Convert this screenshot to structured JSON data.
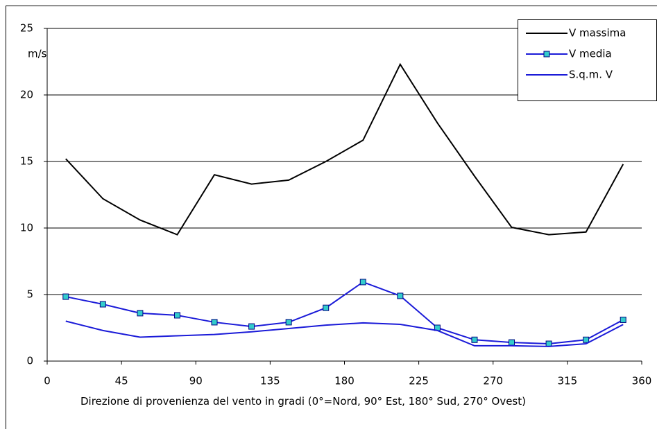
{
  "chart_data": {
    "type": "line",
    "x_label": "Direzione di provenienza del vento in gradi (0°=Nord, 90° Est, 180° Sud, 270° Ovest)",
    "y_label": "m/s",
    "x": [
      11.25,
      33.75,
      56.25,
      78.75,
      101.25,
      123.75,
      146.25,
      168.75,
      191.25,
      213.75,
      236.25,
      258.75,
      281.25,
      303.75,
      326.25,
      348.75
    ],
    "series": [
      {
        "name": "V massima",
        "color": "#000000",
        "marker": "none",
        "values": [
          15.2,
          12.2,
          10.6,
          9.5,
          14.0,
          13.3,
          13.6,
          15.0,
          16.6,
          22.3,
          17.9,
          13.9,
          10.05,
          9.5,
          9.7,
          14.8
        ]
      },
      {
        "name": "V media",
        "color": "#1a1ad8",
        "marker": "square",
        "marker_color": "#33cccc",
        "values": [
          4.84,
          4.27,
          3.6,
          3.44,
          2.92,
          2.6,
          2.92,
          4.0,
          5.94,
          4.9,
          2.5,
          1.6,
          1.4,
          1.3,
          1.6,
          3.1
        ]
      },
      {
        "name": "S.q.m. V",
        "color": "#1a1ad8",
        "marker": "none",
        "values": [
          3.0,
          2.3,
          1.8,
          1.9,
          2.0,
          2.2,
          2.45,
          2.7,
          2.87,
          2.76,
          2.3,
          1.15,
          1.15,
          1.1,
          1.3,
          2.75
        ]
      }
    ],
    "xlim": [
      0,
      360
    ],
    "xticks": [
      0,
      45,
      90,
      135,
      180,
      225,
      270,
      315,
      360
    ],
    "ylim": [
      0,
      25
    ],
    "yticks": [
      0,
      5,
      10,
      15,
      20,
      25
    ],
    "grid": true,
    "legend": "upper right"
  }
}
